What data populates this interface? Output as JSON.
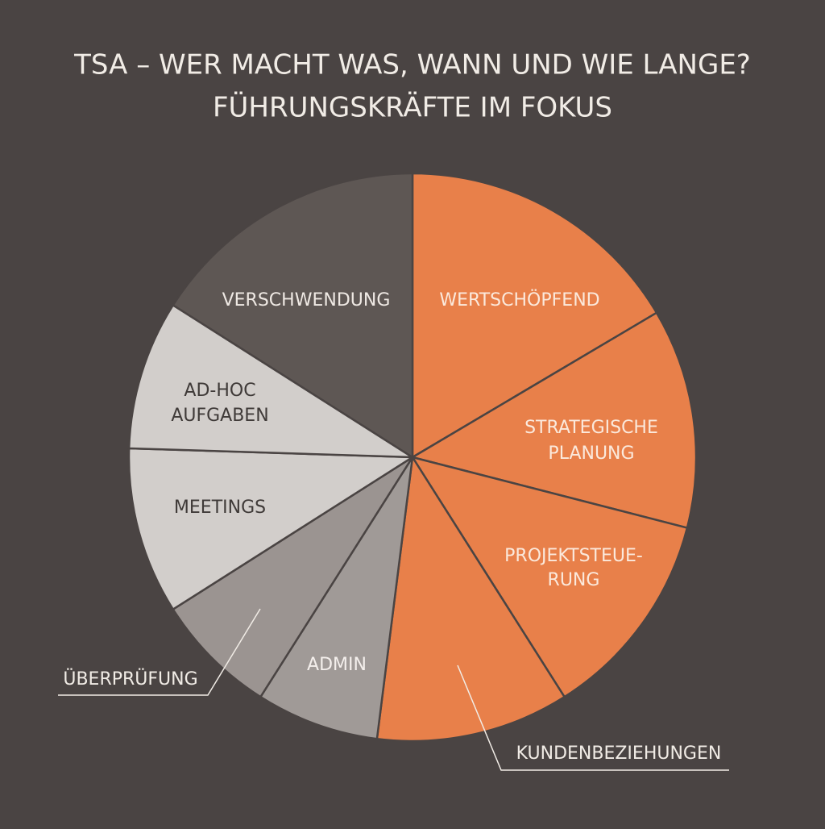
{
  "chart_data": {
    "type": "pie",
    "title": "TSA – WER MACHT WAS, WANN UND WIE LANGE?",
    "subtitle": "FÜHRUNGSKRÄFTE IM FOKUS",
    "labels": [
      [
        "WERTSCHÖPFEND"
      ],
      [
        "STRATEGISCHE",
        "PLANUNG"
      ],
      [
        "PROJEKTSTEUE-",
        "RUNG"
      ],
      [
        "KUNDENBEZIEHUNGEN"
      ],
      [
        "ADMIN"
      ],
      [
        "ÜBERPRÜFUNG"
      ],
      [
        "MEETINGS"
      ],
      [
        "AD-HOC",
        "AUFGABEN"
      ],
      [
        "VERSCHWENDUNG"
      ]
    ],
    "values": [
      16.5,
      12.5,
      12,
      11,
      7,
      7,
      9.5,
      8.5,
      16
    ],
    "colors": [
      "#e8804a",
      "#e8804a",
      "#e8804a",
      "#e8804a",
      "#a09a97",
      "#9b9491",
      "#d2cecb",
      "#d2cecb",
      "#5e5754"
    ]
  }
}
